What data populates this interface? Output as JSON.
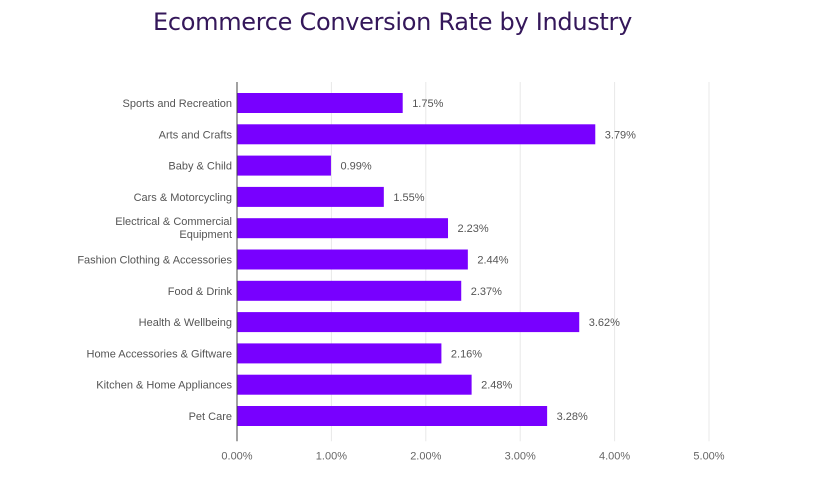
{
  "chart_data": {
    "type": "bar",
    "orientation": "horizontal",
    "title": "Ecommerce Conversion Rate by Industry",
    "xlabel": "",
    "ylabel": "",
    "categories": [
      "Sports and Recreation",
      "Arts and Crafts",
      "Baby & Child",
      "Cars & Motorcycling",
      "Electrical & Commercial Equipment",
      "Fashion Clothing & Accessories",
      "Food & Drink",
      "Health & Wellbeing",
      "Home Accessories & Giftware",
      "Kitchen & Home Appliances",
      "Pet Care"
    ],
    "values": [
      1.75,
      3.79,
      0.99,
      1.55,
      2.23,
      2.44,
      2.37,
      3.62,
      2.16,
      2.48,
      3.28
    ],
    "value_labels": [
      "1.75%",
      "3.79%",
      "0.99%",
      "1.55%",
      "2.23%",
      "2.44%",
      "2.37%",
      "3.62%",
      "2.16%",
      "2.48%",
      "3.28%"
    ],
    "xlim": [
      0,
      5
    ],
    "xticks": [
      0,
      1,
      2,
      3,
      4,
      5
    ],
    "xtick_labels": [
      "0.00%",
      "1.00%",
      "2.00%",
      "3.00%",
      "4.00%",
      "5.00%"
    ],
    "grid": true,
    "bar_color": "#7800ff",
    "title_color": "#34175a"
  }
}
